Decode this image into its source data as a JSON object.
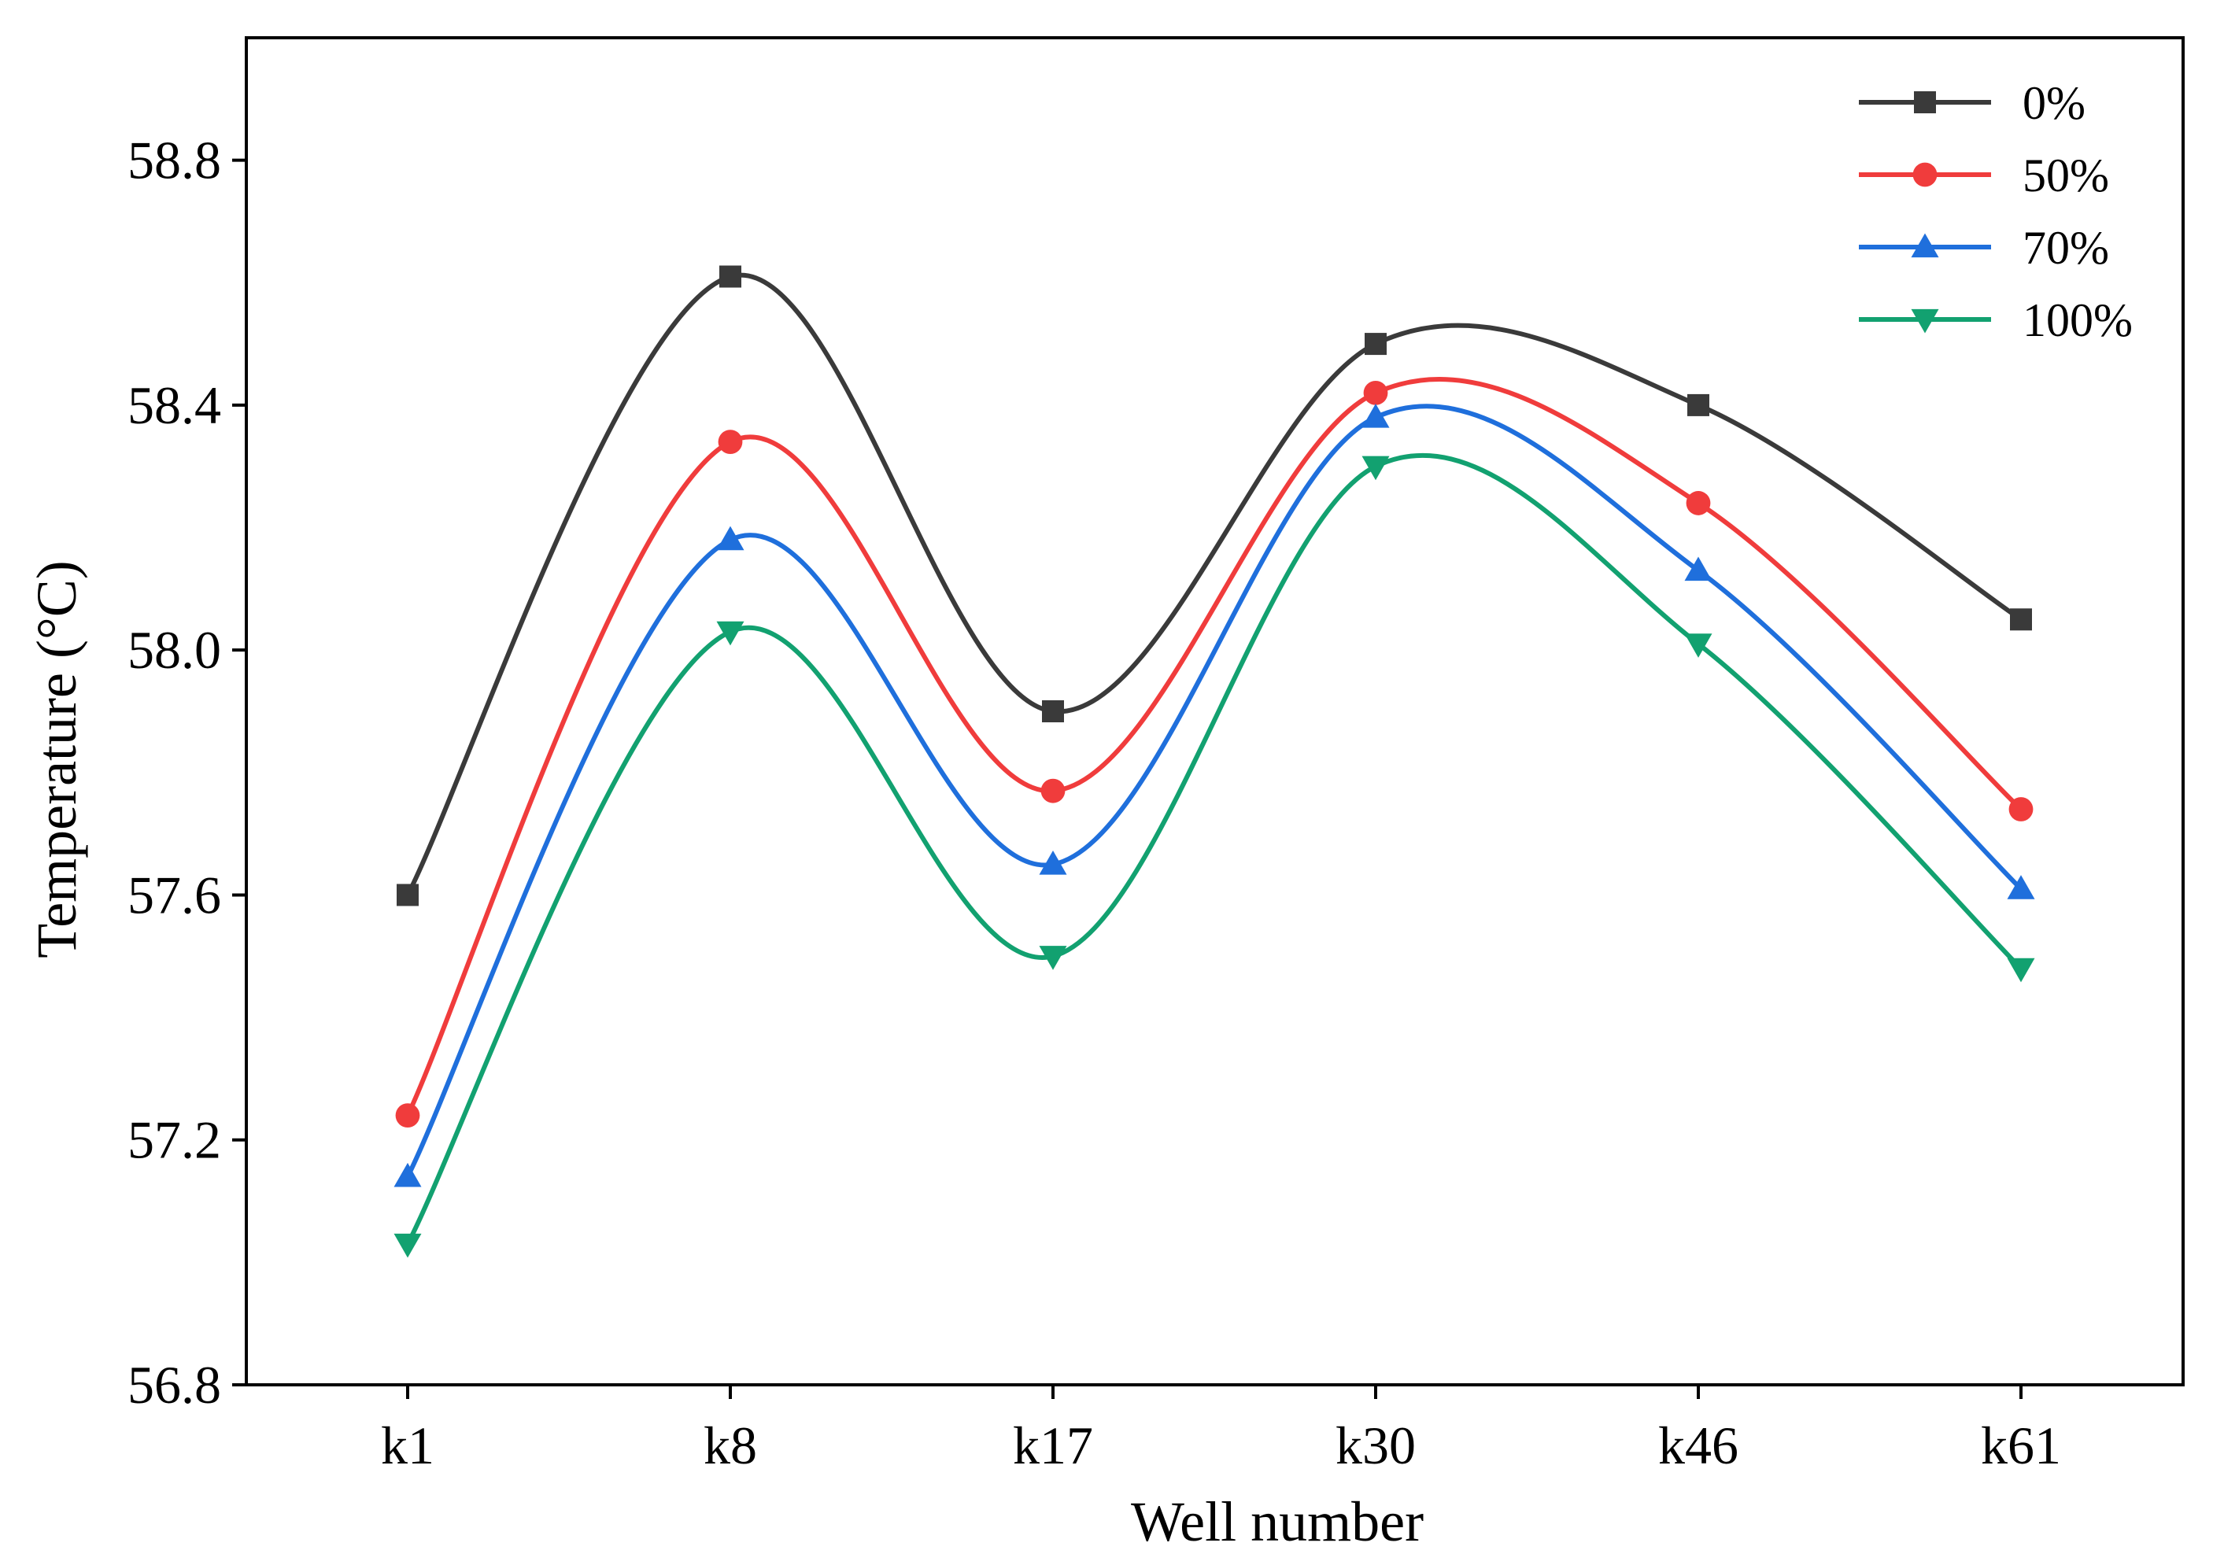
{
  "chart_data": {
    "type": "line",
    "title": "",
    "xlabel": "Well number",
    "ylabel": "Temperature (°C)",
    "categories": [
      "k1",
      "k8",
      "k17",
      "k30",
      "k46",
      "k61"
    ],
    "ylim": [
      56.8,
      59.0
    ],
    "yticks": [
      "56.8",
      "57.2",
      "57.6",
      "58.0",
      "58.4",
      "58.8"
    ],
    "grid": false,
    "smooth": true,
    "legend_position": "top-right",
    "series": [
      {
        "name": "0%",
        "color": "#3a3a3a",
        "marker": "square",
        "values": [
          57.6,
          58.61,
          57.9,
          58.5,
          58.4,
          58.05
        ]
      },
      {
        "name": "50%",
        "color": "#f03c3c",
        "marker": "circle",
        "values": [
          57.24,
          58.34,
          57.77,
          58.42,
          58.24,
          57.74
        ]
      },
      {
        "name": "70%",
        "color": "#1f6fdc",
        "marker": "triangle-up",
        "values": [
          57.14,
          58.18,
          57.65,
          58.38,
          58.13,
          57.61
        ]
      },
      {
        "name": "100%",
        "color": "#12a170",
        "marker": "triangle-down",
        "values": [
          57.03,
          58.03,
          57.5,
          58.3,
          58.01,
          57.48
        ]
      }
    ]
  }
}
